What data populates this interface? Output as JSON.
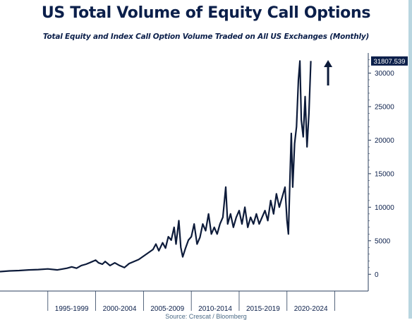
{
  "chart_data": {
    "type": "line",
    "title": "US Total Volume of Equity Call Options",
    "subtitle": "Total Equity and Index Call Option Volume Traded on All US Exchanges (Monthly)",
    "source": "Source: Crescat / Bloomberg",
    "ylim": [
      -2500,
      33000
    ],
    "xlim": [
      1990,
      2028.5
    ],
    "y_ticks": [
      0,
      5000,
      10000,
      15000,
      20000,
      25000,
      30000
    ],
    "x_ticks": [
      {
        "label": "1995-1999",
        "start": 1995,
        "end": 2000
      },
      {
        "label": "2000-2004",
        "start": 2000,
        "end": 2005
      },
      {
        "label": "2005-2009",
        "start": 2005,
        "end": 2010
      },
      {
        "label": "2010-2014",
        "start": 2010,
        "end": 2015
      },
      {
        "label": "2015-2019",
        "start": 2015,
        "end": 2020
      },
      {
        "label": "2020-2024",
        "start": 2020,
        "end": 2025
      }
    ],
    "last_value_label": "31807.539",
    "grid": false,
    "series": [
      {
        "color": "#0d1b3a",
        "points": [
          [
            1990.0,
            400
          ],
          [
            1991.0,
            500
          ],
          [
            1992.0,
            550
          ],
          [
            1993.0,
            650
          ],
          [
            1994.0,
            700
          ],
          [
            1995.0,
            800
          ],
          [
            1996.0,
            650
          ],
          [
            1997.0,
            900
          ],
          [
            1997.5,
            1100
          ],
          [
            1998.0,
            900
          ],
          [
            1998.5,
            1300
          ],
          [
            1999.0,
            1500
          ],
          [
            1999.5,
            1800
          ],
          [
            2000.0,
            2100
          ],
          [
            2000.3,
            1700
          ],
          [
            2000.7,
            1500
          ],
          [
            2001.0,
            1900
          ],
          [
            2001.5,
            1300
          ],
          [
            2002.0,
            1700
          ],
          [
            2002.5,
            1300
          ],
          [
            2003.0,
            1000
          ],
          [
            2003.5,
            1600
          ],
          [
            2004.0,
            1900
          ],
          [
            2004.5,
            2200
          ],
          [
            2005.0,
            2700
          ],
          [
            2005.5,
            3200
          ],
          [
            2006.0,
            3700
          ],
          [
            2006.3,
            4500
          ],
          [
            2006.6,
            3500
          ],
          [
            2007.0,
            4700
          ],
          [
            2007.3,
            3900
          ],
          [
            2007.6,
            5600
          ],
          [
            2007.9,
            5100
          ],
          [
            2008.2,
            7000
          ],
          [
            2008.4,
            4500
          ],
          [
            2008.7,
            8000
          ],
          [
            2008.9,
            4000
          ],
          [
            2009.1,
            2600
          ],
          [
            2009.4,
            3900
          ],
          [
            2009.7,
            5100
          ],
          [
            2010.0,
            5600
          ],
          [
            2010.3,
            7500
          ],
          [
            2010.6,
            4500
          ],
          [
            2010.9,
            5500
          ],
          [
            2011.2,
            7500
          ],
          [
            2011.5,
            6500
          ],
          [
            2011.8,
            9000
          ],
          [
            2012.1,
            6000
          ],
          [
            2012.4,
            7000
          ],
          [
            2012.7,
            6000
          ],
          [
            2013.0,
            7500
          ],
          [
            2013.3,
            8500
          ],
          [
            2013.6,
            13000
          ],
          [
            2013.8,
            7500
          ],
          [
            2014.1,
            9000
          ],
          [
            2014.4,
            7000
          ],
          [
            2014.7,
            8500
          ],
          [
            2015.0,
            9500
          ],
          [
            2015.3,
            7500
          ],
          [
            2015.6,
            10000
          ],
          [
            2015.9,
            7000
          ],
          [
            2016.2,
            8500
          ],
          [
            2016.5,
            7500
          ],
          [
            2016.8,
            9000
          ],
          [
            2017.1,
            7500
          ],
          [
            2017.4,
            8500
          ],
          [
            2017.7,
            9500
          ],
          [
            2018.0,
            8000
          ],
          [
            2018.3,
            11000
          ],
          [
            2018.6,
            9000
          ],
          [
            2018.9,
            12000
          ],
          [
            2019.2,
            10000
          ],
          [
            2019.5,
            11500
          ],
          [
            2019.8,
            13000
          ],
          [
            2020.0,
            8000
          ],
          [
            2020.15,
            6000
          ],
          [
            2020.3,
            13500
          ],
          [
            2020.45,
            21000
          ],
          [
            2020.6,
            13000
          ],
          [
            2020.8,
            19500
          ],
          [
            2021.0,
            22000
          ],
          [
            2021.2,
            29000
          ],
          [
            2021.35,
            31800
          ],
          [
            2021.5,
            23000
          ],
          [
            2021.7,
            20500
          ],
          [
            2021.9,
            26500
          ],
          [
            2022.1,
            19000
          ],
          [
            2022.3,
            24000
          ],
          [
            2022.5,
            31807.539
          ]
        ]
      }
    ]
  }
}
